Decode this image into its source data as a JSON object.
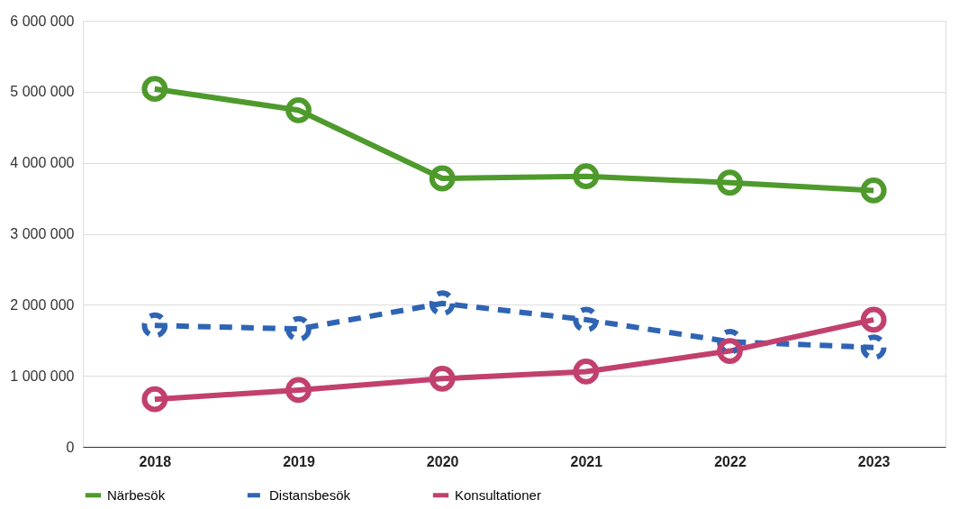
{
  "chart_data": {
    "type": "line",
    "categories": [
      "2018",
      "2019",
      "2020",
      "2021",
      "2022",
      "2023"
    ],
    "series": [
      {
        "name": "Närbesök",
        "color": "#4e9a2c",
        "line_style": "solid",
        "values": [
          5040000,
          4740000,
          3780000,
          3810000,
          3720000,
          3610000
        ]
      },
      {
        "name": "Distansbesök",
        "color": "#2f64b4",
        "line_style": "dashed",
        "values": [
          1710000,
          1660000,
          2020000,
          1790000,
          1480000,
          1400000
        ]
      },
      {
        "name": "Konsultationer",
        "color": "#c2406e",
        "line_style": "solid",
        "values": [
          670000,
          800000,
          960000,
          1060000,
          1350000,
          1790000
        ]
      }
    ],
    "ylim": [
      0,
      6000000
    ],
    "yticks": [
      0,
      {
        "value": 1000000,
        "label": "1 000 000"
      },
      {
        "value": 2000000,
        "label": "2 000 000"
      },
      {
        "value": 3000000,
        "label": "3 000 000"
      },
      {
        "value": 4000000,
        "label": "4 000 000"
      },
      {
        "value": 5000000,
        "label": "5 000 000"
      },
      {
        "value": 6000000,
        "label": "6 000 000"
      }
    ],
    "grid": "y",
    "legend": "bottom",
    "marker": "circle"
  }
}
